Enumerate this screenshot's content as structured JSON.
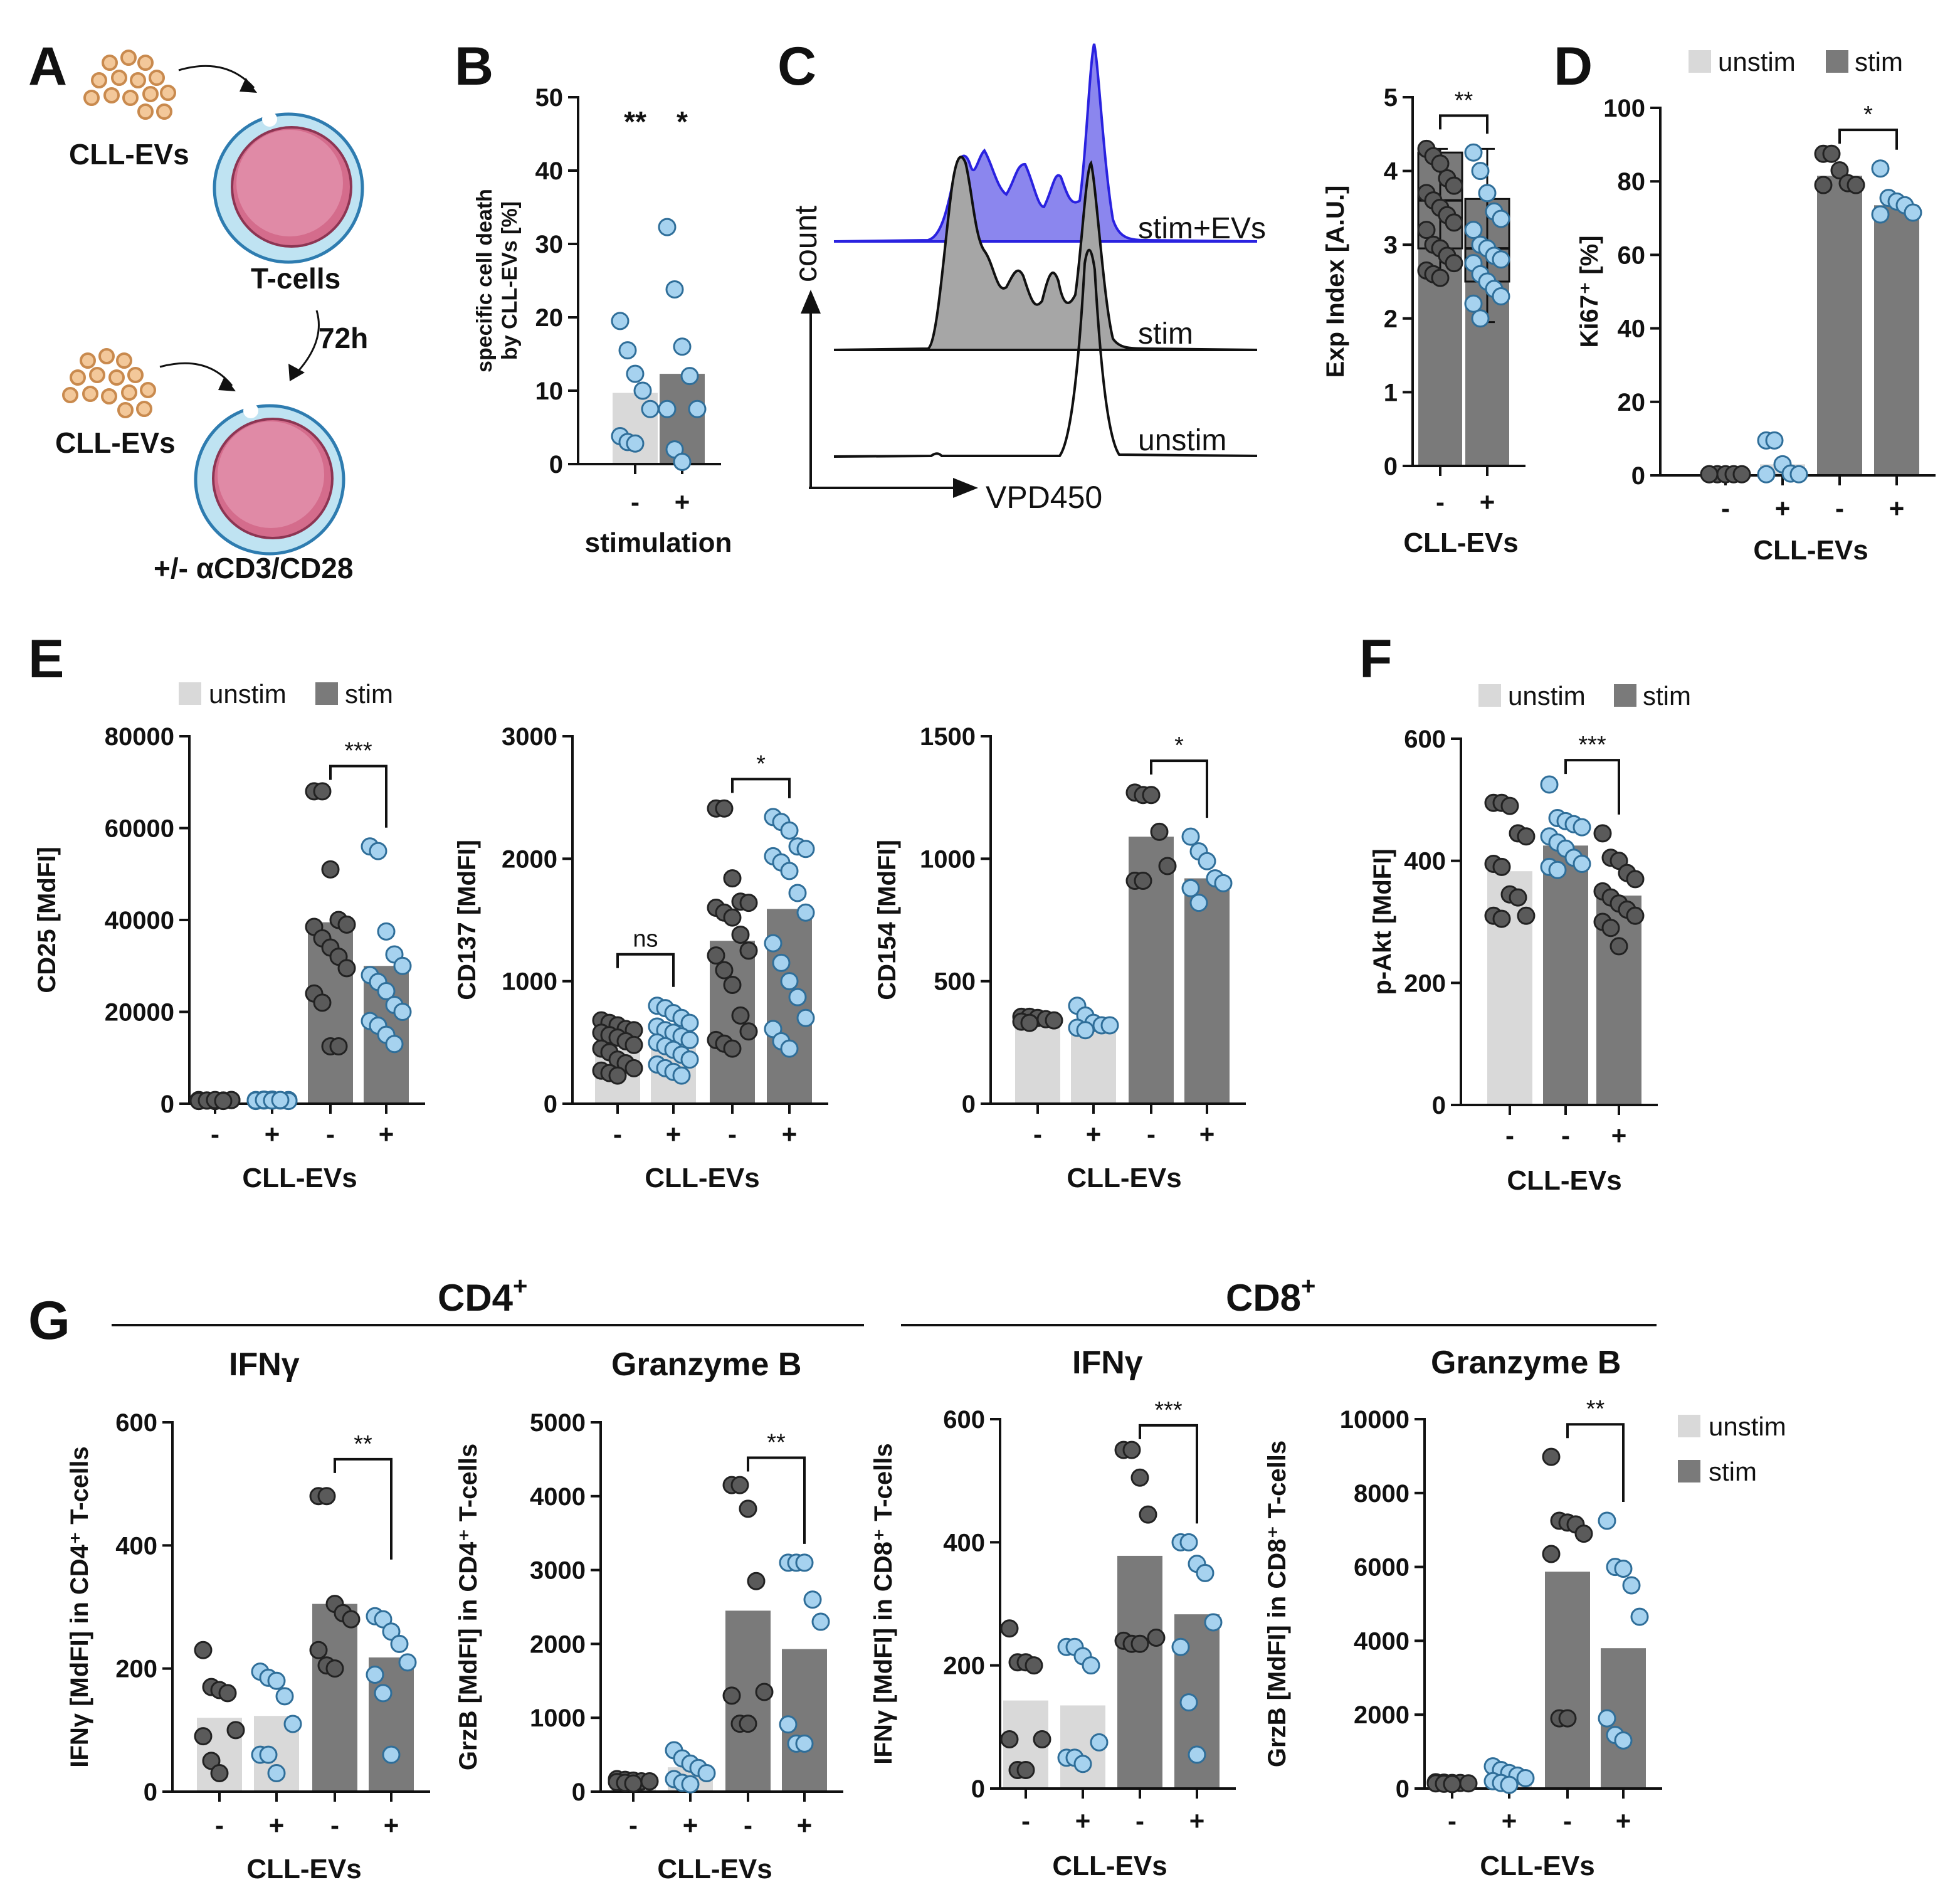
{
  "colors": {
    "unstim": "#d9d9d9",
    "stim": "#7a7a7a",
    "dot_dark": "#5a5a5a",
    "dot_blue": "#a6d2ef",
    "dot_blue_stroke": "#2f6e99",
    "hist_blue": "#8b86ee",
    "hist_blue_line": "#2a22e0",
    "hist_gray": "#a6a6a6"
  },
  "panelA": {
    "letter": "A",
    "label_ev_top": "CLL-EVs",
    "label_tcells": "T-cells",
    "label_time": "72h",
    "label_ev_bottom": "CLL-EVs",
    "label_stim": "+/- αCD3/CD28"
  },
  "panelC": {
    "letter": "C",
    "label_count": "count",
    "label_dye": "VPD450",
    "label_stimev": "stim+EVs",
    "label_stim": "stim",
    "label_unstim": "unstim"
  },
  "panelG": {
    "letter": "G",
    "header_cd4": "CD4",
    "header_cd8": "CD8",
    "sup_plus": "+",
    "sub_ifng": "IFNγ",
    "sub_grzb": "Granzyme B"
  },
  "legend": {
    "unstim": "unstim",
    "stim": "stim"
  },
  "chart_data": [
    {
      "id": "B",
      "letter": "B",
      "type": "bar",
      "ylabel": "specific cell death\nby CLL-EVs [%]",
      "xlabel": "stimulation",
      "ylim": [
        0,
        50
      ],
      "yticks": [
        "0",
        "10",
        "20",
        "30",
        "40",
        "50"
      ],
      "categories": [
        "-",
        "+"
      ],
      "bar_colors": [
        "unstim",
        "stim"
      ],
      "values": [
        9.7,
        12.3
      ],
      "points": [
        [
          19.5,
          15.5,
          12.3,
          10.0,
          7.5,
          3.8,
          3.0,
          2.8
        ],
        [
          32.3,
          23.8,
          16.0,
          12.0,
          7.5,
          7.5,
          2.0,
          0.3
        ]
      ],
      "point_colors": [
        "blue",
        "blue"
      ],
      "annotations": [
        {
          "text": "**",
          "x": 0,
          "y": 46.5
        },
        {
          "text": "*",
          "x": 1,
          "y": 46.5
        }
      ]
    },
    {
      "id": "C2",
      "type": "bar",
      "ylabel": "Exp Index [A.U.]",
      "xlabel": "CLL-EVs",
      "ylim": [
        0,
        5
      ],
      "yticks": [
        "0",
        "1",
        "2",
        "3",
        "4",
        "5"
      ],
      "categories": [
        "-",
        "+"
      ],
      "bar_colors": [
        "stim",
        "stim"
      ],
      "values": [
        4.25,
        3.62
      ],
      "box": [
        [
          2.55,
          2.95,
          3.6,
          4.25,
          4.3
        ],
        [
          1.95,
          2.5,
          2.95,
          3.62,
          4.3
        ]
      ],
      "points": [
        [
          4.3,
          4.2,
          4.1,
          3.9,
          3.8,
          3.7,
          3.6,
          3.5,
          3.4,
          3.3,
          3.2,
          3.0,
          2.95,
          2.85,
          2.75,
          2.65,
          2.6,
          2.55
        ],
        [
          4.25,
          4.0,
          3.7,
          3.45,
          3.35,
          3.2,
          3.0,
          2.95,
          2.85,
          2.8,
          2.75,
          2.6,
          2.5,
          2.4,
          2.3,
          2.2,
          2.0
        ]
      ],
      "point_colors": [
        "dark",
        "blue"
      ],
      "sig": {
        "text": "**",
        "from": 0,
        "to": 1,
        "y": 4.75
      }
    },
    {
      "id": "D",
      "letter": "D",
      "type": "bar",
      "ylabel": "Ki67⁺ [%]",
      "xlabel": "CLL-EVs",
      "ylim": [
        0,
        100
      ],
      "yticks": [
        "0",
        "20",
        "40",
        "60",
        "80",
        "100"
      ],
      "categories": [
        "-",
        "+",
        "-",
        "+"
      ],
      "bar_colors": [
        "unstim",
        "unstim",
        "stim",
        "stim"
      ],
      "values": [
        0.3,
        3.0,
        81.5,
        73.5
      ],
      "points": [
        [
          0.3,
          0.3,
          0.3,
          0.3,
          0.3,
          0.3
        ],
        [
          9.5,
          9.5,
          3.0,
          0.5,
          0.3,
          0.3
        ],
        [
          87.5,
          87.5,
          83.0,
          79.5,
          79.0,
          79.0
        ],
        [
          83.5,
          75.5,
          74.5,
          73.5,
          71.5,
          71.0
        ]
      ],
      "point_colors": [
        "dark",
        "blue",
        "dark",
        "blue"
      ],
      "sig": {
        "text": "*",
        "from": 2,
        "to": 3,
        "y": 94
      }
    },
    {
      "id": "E1",
      "letter": "E",
      "type": "bar",
      "ylabel": "CD25 [MdFI]",
      "xlabel": "CLL-EVs",
      "ylim": [
        0,
        80000
      ],
      "yticks": [
        "0",
        "20000",
        "40000",
        "60000",
        "80000"
      ],
      "categories": [
        "-",
        "+",
        "-",
        "+"
      ],
      "bar_colors": [
        "unstim",
        "unstim",
        "stim",
        "stim"
      ],
      "values": [
        700,
        800,
        39500,
        30000
      ],
      "points": [
        [
          800,
          700,
          600,
          700,
          800,
          600,
          700,
          600,
          700,
          800,
          600,
          700,
          800,
          600
        ],
        [
          800,
          700,
          900,
          700,
          800,
          600,
          900,
          700,
          800,
          600,
          700,
          800,
          700,
          800
        ],
        [
          68000,
          68000,
          51000,
          40000,
          39000,
          38500,
          36000,
          34000,
          32000,
          29500,
          24000,
          22000,
          12500,
          12500
        ],
        [
          56000,
          55000,
          37500,
          32500,
          30000,
          28000,
          26500,
          24500,
          21500,
          20000,
          18000,
          17000,
          15000,
          13000
        ]
      ],
      "point_colors": [
        "dark",
        "blue",
        "dark",
        "blue"
      ],
      "sig": {
        "text": "***",
        "from": 2,
        "to": 3,
        "y": 73500
      }
    },
    {
      "id": "E2",
      "type": "bar",
      "ylabel": "CD137 [MdFI]",
      "xlabel": "CLL-EVs",
      "ylim": [
        0,
        3000
      ],
      "yticks": [
        "0",
        "1000",
        "2000",
        "3000"
      ],
      "categories": [
        "-",
        "+",
        "-",
        "+"
      ],
      "bar_colors": [
        "unstim",
        "unstim",
        "stim",
        "stim"
      ],
      "values": [
        480,
        480,
        1330,
        1590
      ],
      "points": [
        [
          680,
          660,
          640,
          610,
          600,
          580,
          560,
          540,
          510,
          480,
          450,
          420,
          360,
          330,
          290,
          270,
          250,
          230
        ],
        [
          800,
          780,
          740,
          700,
          660,
          630,
          600,
          580,
          550,
          520,
          500,
          470,
          440,
          400,
          360,
          320,
          290,
          260,
          230
        ],
        [
          2410,
          2410,
          1840,
          1650,
          1640,
          1600,
          1560,
          1520,
          1380,
          1250,
          1210,
          1090,
          970,
          720,
          590,
          520,
          490,
          450
        ],
        [
          2340,
          2300,
          2230,
          2100,
          2080,
          2020,
          1970,
          1900,
          1720,
          1560,
          1310,
          1150,
          1000,
          870,
          700,
          610,
          510,
          450
        ]
      ],
      "point_colors": [
        "dark",
        "blue",
        "dark",
        "blue"
      ],
      "sig": {
        "text": "*",
        "from": 2,
        "to": 3,
        "y": 2650
      },
      "sig2": {
        "text": "ns",
        "from": 0,
        "to": 1,
        "y": 1220
      }
    },
    {
      "id": "E3",
      "type": "bar",
      "ylabel": "CD154 [MdFI]",
      "xlabel": "CLL-EVs",
      "ylim": [
        0,
        1500
      ],
      "yticks": [
        "0",
        "500",
        "1000",
        "1500"
      ],
      "categories": [
        "-",
        "+",
        "-",
        "+"
      ],
      "bar_colors": [
        "unstim",
        "unstim",
        "stim",
        "stim"
      ],
      "values": [
        345,
        320,
        1090,
        920
      ],
      "points": [
        [
          355,
          355,
          350,
          345,
          340,
          335,
          330
        ],
        [
          400,
          360,
          330,
          320,
          320,
          310,
          300
        ],
        [
          1270,
          1260,
          1260,
          1110,
          970,
          910,
          910
        ],
        [
          1090,
          1030,
          990,
          920,
          900,
          880,
          820
        ]
      ],
      "point_colors": [
        "dark",
        "blue",
        "dark",
        "blue"
      ],
      "sig": {
        "text": "*",
        "from": 2,
        "to": 3,
        "y": 1400
      }
    },
    {
      "id": "F",
      "letter": "F",
      "type": "bar",
      "ylabel": "p-Akt [MdFI]",
      "xlabel": "CLL-EVs",
      "ylim": [
        0,
        600
      ],
      "yticks": [
        "0",
        "200",
        "400",
        "600"
      ],
      "categories": [
        "-",
        "-",
        "+"
      ],
      "bar_colors": [
        "unstim",
        "stim",
        "stim"
      ],
      "values": [
        383,
        425,
        343
      ],
      "points": [
        [
          495,
          495,
          490,
          445,
          440,
          395,
          390,
          345,
          340,
          310,
          310,
          305
        ],
        [
          525,
          470,
          465,
          460,
          455,
          440,
          430,
          420,
          405,
          395,
          390,
          385
        ],
        [
          445,
          405,
          400,
          380,
          370,
          350,
          340,
          330,
          320,
          310,
          300,
          290,
          260
        ]
      ],
      "point_colors": [
        "dark",
        "blue",
        "dark"
      ],
      "sig": {
        "text": "***",
        "from": 1,
        "to": 2,
        "y": 565
      }
    },
    {
      "id": "G1",
      "type": "bar",
      "ylabel": "IFNγ [MdFI] in CD4⁺ T-cells",
      "xlabel": "CLL-EVs",
      "ylim": [
        0,
        600
      ],
      "yticks": [
        "0",
        "200",
        "400",
        "600"
      ],
      "categories": [
        "-",
        "+",
        "-",
        "+"
      ],
      "bar_colors": [
        "unstim",
        "unstim",
        "stim",
        "stim"
      ],
      "values": [
        120,
        123,
        305,
        218
      ],
      "points": [
        [
          230,
          170,
          165,
          160,
          100,
          90,
          50,
          30
        ],
        [
          195,
          185,
          180,
          155,
          110,
          60,
          60,
          30
        ],
        [
          480,
          480,
          305,
          290,
          280,
          230,
          205,
          200
        ],
        [
          285,
          280,
          260,
          240,
          210,
          190,
          160,
          60
        ]
      ],
      "point_colors": [
        "dark",
        "blue",
        "dark",
        "blue"
      ],
      "sig": {
        "text": "**",
        "from": 2,
        "to": 3,
        "y": 540
      }
    },
    {
      "id": "G2",
      "type": "bar",
      "ylabel": "GrzB [MdFI] in CD4⁺ T-cells",
      "xlabel": "CLL-EVs",
      "ylim": [
        0,
        5000
      ],
      "yticks": [
        "0",
        "1000",
        "2000",
        "3000",
        "4000",
        "5000"
      ],
      "categories": [
        "-",
        "+",
        "-",
        "+"
      ],
      "bar_colors": [
        "unstim",
        "unstim",
        "stim",
        "stim"
      ],
      "values": [
        140,
        330,
        2450,
        1930
      ],
      "points": [
        [
          170,
          160,
          150,
          140,
          140,
          130,
          120,
          110
        ],
        [
          560,
          450,
          380,
          320,
          250,
          170,
          120,
          100
        ],
        [
          4150,
          4150,
          3830,
          2850,
          1350,
          1300,
          920,
          920
        ],
        [
          3100,
          3100,
          3100,
          2600,
          2300,
          910,
          650,
          650
        ]
      ],
      "point_colors": [
        "dark",
        "blue",
        "dark",
        "blue"
      ],
      "sig": {
        "text": "**",
        "from": 2,
        "to": 3,
        "y": 4520
      }
    },
    {
      "id": "G3",
      "type": "bar",
      "ylabel": "IFNγ [MdFI] in CD8⁺ T-cells",
      "xlabel": "CLL-EVs",
      "ylim": [
        0,
        600
      ],
      "yticks": [
        "0",
        "200",
        "400",
        "600"
      ],
      "categories": [
        "-",
        "+",
        "-",
        "+"
      ],
      "bar_colors": [
        "unstim",
        "unstim",
        "stim",
        "stim"
      ],
      "values": [
        143,
        135,
        378,
        283
      ],
      "points": [
        [
          260,
          205,
          205,
          200,
          80,
          80,
          30,
          30
        ],
        [
          230,
          230,
          215,
          200,
          75,
          50,
          50,
          40
        ],
        [
          550,
          550,
          505,
          445,
          245,
          240,
          235,
          235
        ],
        [
          400,
          400,
          365,
          350,
          270,
          230,
          140,
          55
        ]
      ],
      "point_colors": [
        "dark",
        "blue",
        "dark",
        "blue"
      ],
      "sig": {
        "text": "***",
        "from": 2,
        "to": 3,
        "y": 590
      }
    },
    {
      "id": "G4",
      "type": "bar",
      "ylabel": "GrzB [MdFI] in CD8⁺ T-cells",
      "xlabel": "CLL-EVs",
      "ylim": [
        0,
        10000
      ],
      "yticks": [
        "0",
        "2000",
        "4000",
        "6000",
        "8000",
        "10000"
      ],
      "categories": [
        "-",
        "+",
        "-",
        "+"
      ],
      "bar_colors": [
        "unstim",
        "unstim",
        "stim",
        "stim"
      ],
      "values": [
        150,
        380,
        5870,
        3800
      ],
      "points": [
        [
          170,
          160,
          150,
          150,
          140,
          140,
          130,
          120
        ],
        [
          600,
          500,
          420,
          350,
          280,
          200,
          150,
          100
        ],
        [
          8980,
          7250,
          7200,
          7150,
          6900,
          6350,
          1900,
          1900
        ],
        [
          7250,
          6000,
          5950,
          5500,
          4650,
          1900,
          1450,
          1300
        ]
      ],
      "point_colors": [
        "dark",
        "blue",
        "dark",
        "blue"
      ],
      "sig": {
        "text": "**",
        "from": 2,
        "to": 3,
        "y": 9860
      }
    }
  ]
}
